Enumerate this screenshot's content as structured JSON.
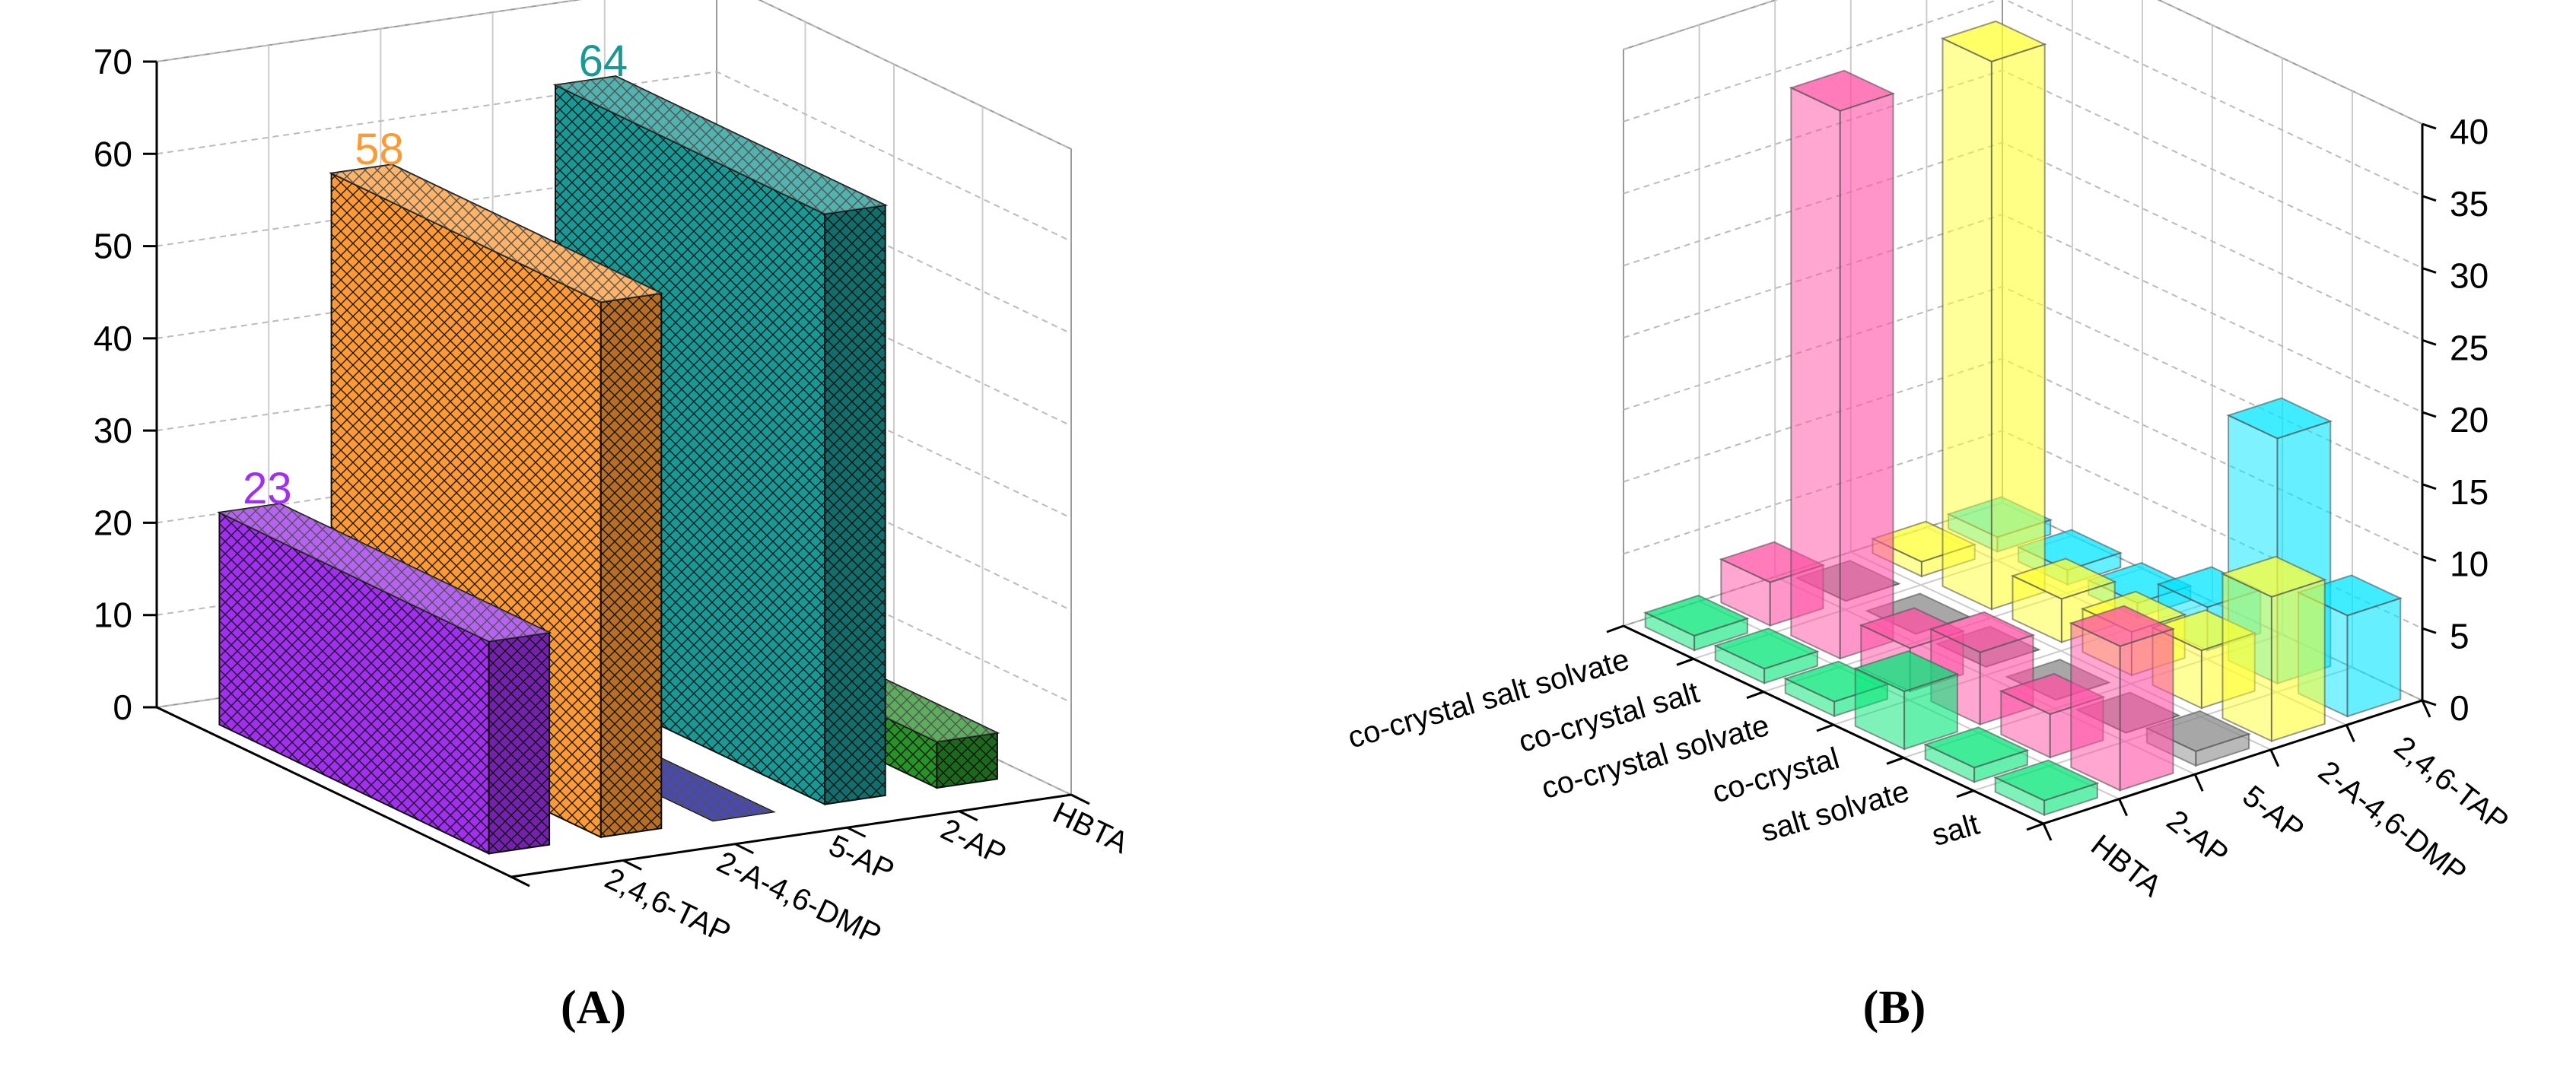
{
  "chart_data": [
    {
      "type": "bar3d",
      "label": "(A)",
      "categories": [
        "2,4,6-TAP",
        "2-A-4,6-DMP",
        "5-AP",
        "2-AP",
        "HBTA"
      ],
      "values": [
        23,
        58,
        0,
        64,
        5
      ],
      "colors": [
        "#a12ef2",
        "#ff9a33",
        "#0c0c9a",
        "#179a96",
        "#269326"
      ],
      "ylim": [
        0,
        70
      ],
      "yticks": [
        0,
        10,
        20,
        30,
        40,
        50,
        60,
        70
      ],
      "grid": true
    },
    {
      "type": "bar3d-matrix",
      "label": "(B)",
      "categories": [
        "HBTA",
        "2-AP",
        "5-AP",
        "2-A-4,6-DMP",
        "2,4,6-TAP"
      ],
      "depth_categories": [
        "salt",
        "salt  solvate",
        "co-crystal",
        "co-crystal solvate",
        "co-crystal salt",
        "co-crystal salt solvate"
      ],
      "values": [
        [
          1,
          1,
          4,
          1,
          1,
          1
        ],
        [
          10,
          3,
          5,
          3,
          38,
          3
        ],
        [
          1,
          0,
          0,
          0,
          0,
          0
        ],
        [
          10,
          4,
          3,
          3,
          38,
          1
        ],
        [
          7,
          17,
          3,
          1,
          1,
          1
        ]
      ],
      "colors": [
        "#00e676",
        "#ff4fa3",
        "#8a8a8a",
        "#ffff33",
        "#00e5ff"
      ],
      "ylim": [
        0,
        40
      ],
      "yticks": [
        0,
        5,
        10,
        15,
        20,
        25,
        30,
        35,
        40
      ],
      "grid": true
    }
  ]
}
